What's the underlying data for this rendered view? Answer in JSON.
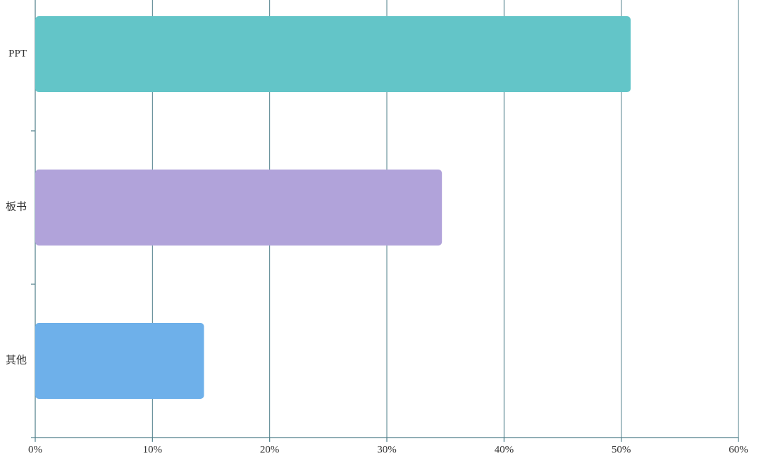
{
  "chart_data": {
    "type": "hbar",
    "categories": [
      "PPT",
      "板书",
      "其他"
    ],
    "values": [
      50.8,
      34.7,
      14.4
    ],
    "colors": [
      "#63c5c8",
      "#b1a3da",
      "#6eb0ea"
    ],
    "xlim": [
      0,
      60
    ],
    "xticks": [
      {
        "value": 0,
        "label": "0%"
      },
      {
        "value": 10,
        "label": "10%"
      },
      {
        "value": 20,
        "label": "20%"
      },
      {
        "value": 30,
        "label": "30%"
      },
      {
        "value": 40,
        "label": "40%"
      },
      {
        "value": 50,
        "label": "50%"
      },
      {
        "value": 60,
        "label": "60%"
      }
    ],
    "grid": true
  }
}
